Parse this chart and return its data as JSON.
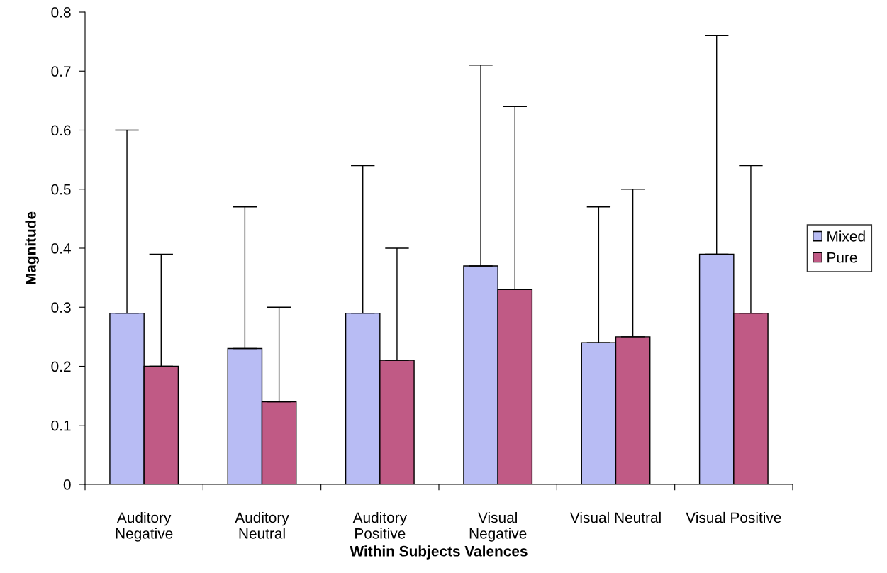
{
  "chart_data": {
    "type": "bar",
    "xlabel": "Within Subjects Valences",
    "ylabel": "Magnitude",
    "categories": [
      "Auditory\nNegative",
      "Auditory\nNeutral",
      "Auditory\nPositive",
      "Visual\nNegative",
      "Visual Neutral",
      "Visual Positive"
    ],
    "series": [
      {
        "name": "Mixed",
        "color": "#b8bcf4",
        "values": [
          0.29,
          0.23,
          0.29,
          0.37,
          0.24,
          0.39
        ],
        "errors": [
          [
            0.29,
            0.6
          ],
          [
            0.23,
            0.47
          ],
          [
            0.29,
            0.54
          ],
          [
            0.37,
            0.71
          ],
          [
            0.24,
            0.47
          ],
          [
            0.39,
            0.76
          ]
        ]
      },
      {
        "name": "Pure",
        "color": "#c05a85",
        "values": [
          0.2,
          0.14,
          0.21,
          0.33,
          0.25,
          0.29
        ],
        "errors": [
          [
            0.2,
            0.39
          ],
          [
            0.14,
            0.3
          ],
          [
            0.21,
            0.4
          ],
          [
            0.33,
            0.64
          ],
          [
            0.25,
            0.5
          ],
          [
            0.29,
            0.54
          ]
        ]
      }
    ],
    "ylim": [
      0,
      0.8
    ],
    "yticks": [
      {
        "value": 0,
        "label": "0"
      },
      0.1,
      0.2,
      0.3,
      0.4,
      0.5,
      0.6,
      0.7,
      0.8
    ],
    "grid": false,
    "legend": "right"
  }
}
